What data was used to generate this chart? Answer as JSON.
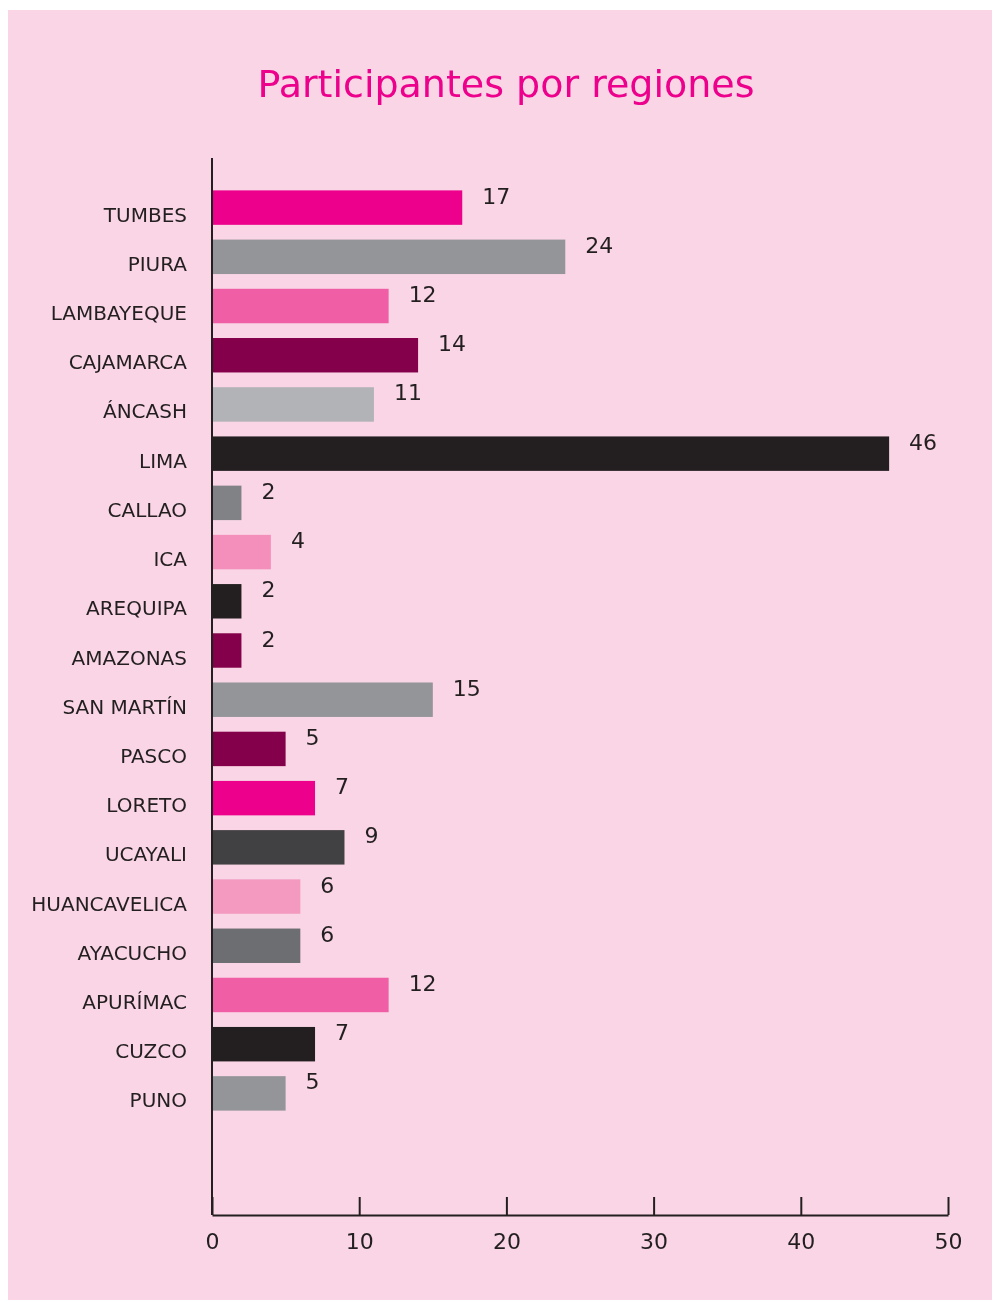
{
  "chart_data": {
    "type": "bar",
    "orientation": "horizontal",
    "title": "Participantes por regiones",
    "categories": [
      "TUMBES",
      "PIURA",
      "LAMBAYEQUE",
      "CAJAMARCA",
      "ÁNCASH",
      "LIMA",
      "CALLAO",
      "ICA",
      "AREQUIPA",
      "AMAZONAS",
      "SAN MARTÍN",
      "PASCO",
      "LORETO",
      "UCAYALI",
      "HUANCAVELICA",
      "AYACUCHO",
      "APURÍMAC",
      "CUZCO",
      "PUNO"
    ],
    "values": [
      17,
      24,
      12,
      14,
      11,
      46,
      2,
      4,
      2,
      2,
      15,
      5,
      7,
      9,
      6,
      6,
      12,
      7,
      5
    ],
    "colors": [
      "#ec008c",
      "#939598",
      "#f05fa5",
      "#85004a",
      "#b1b3b6",
      "#231f20",
      "#808285",
      "#f48fbc",
      "#231f20",
      "#85004a",
      "#939598",
      "#85004a",
      "#ec008c",
      "#414042",
      "#f49ac1",
      "#6d6e71",
      "#f05fa5",
      "#231f20",
      "#939598"
    ],
    "xlim": [
      0,
      50
    ],
    "xticks": [
      0,
      10,
      20,
      30,
      40,
      50
    ],
    "data_labels": true
  }
}
